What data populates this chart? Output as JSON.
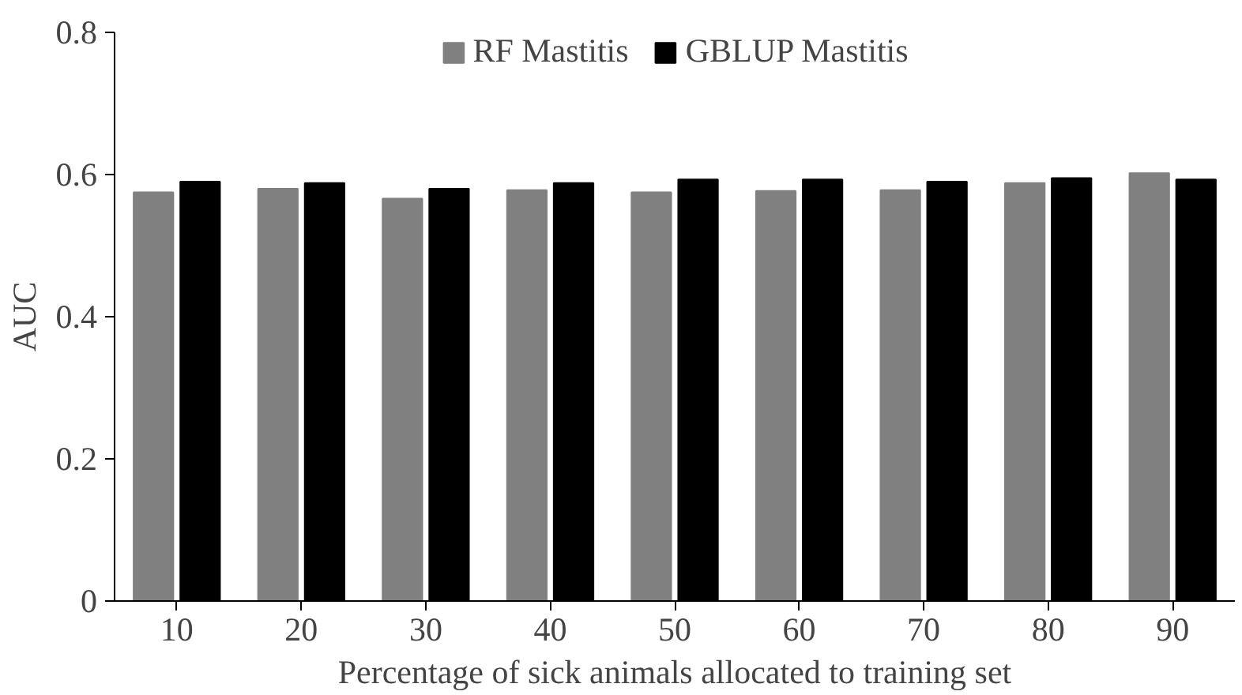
{
  "chart_data": {
    "type": "bar",
    "xlabel": "Percentage of sick animals allocated to training set",
    "ylabel": "AUC",
    "categories": [
      "10",
      "20",
      "30",
      "40",
      "50",
      "60",
      "70",
      "80",
      "90"
    ],
    "series": [
      {
        "name": "RF Mastitis",
        "color": "#808080",
        "values": [
          0.575,
          0.58,
          0.566,
          0.578,
          0.575,
          0.577,
          0.578,
          0.588,
          0.602
        ]
      },
      {
        "name": "GBLUP Mastitis",
        "color": "#000000",
        "values": [
          0.59,
          0.588,
          0.58,
          0.588,
          0.593,
          0.593,
          0.59,
          0.595,
          0.593
        ]
      }
    ],
    "ylim": [
      0,
      0.8
    ],
    "yticks": [
      0,
      0.2,
      0.4,
      0.6,
      0.8
    ],
    "grid": false,
    "legend": "top"
  }
}
